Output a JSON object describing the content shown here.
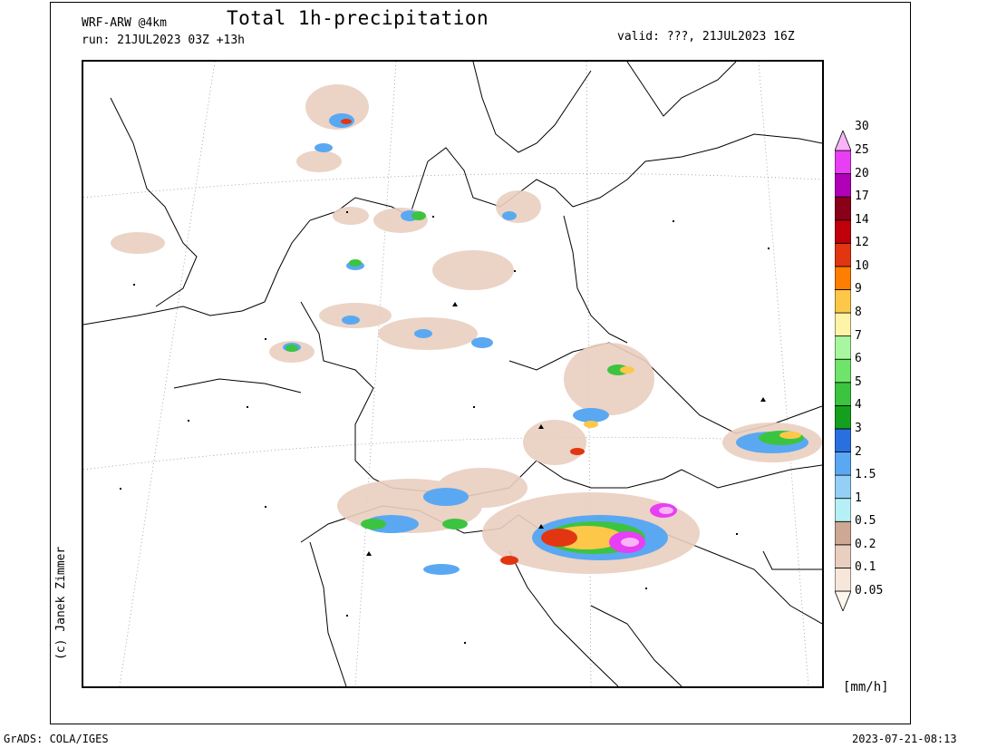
{
  "header": {
    "title": "Total 1h-precipitation",
    "model": "WRF-ARW @4km",
    "run": "run: 21JUL2023 03Z +13h",
    "valid": "valid: ???, 21JUL2023 16Z"
  },
  "credit": "(c) Janek Zimmer",
  "footer": {
    "left": "GrADS: COLA/IGES",
    "right": "2023-07-21-08:13"
  },
  "legend": {
    "units": "[mm/h]",
    "levels": [
      {
        "label": "0.05",
        "color": "#fdf6ee"
      },
      {
        "label": "0.1",
        "color": "#f7e6da"
      },
      {
        "label": "0.2",
        "color": "#e9cfc0"
      },
      {
        "label": "0.5",
        "color": "#cfa795"
      },
      {
        "label": "1",
        "color": "#b6f0f7"
      },
      {
        "label": "1.5",
        "color": "#94d0f5"
      },
      {
        "label": "2",
        "color": "#5aa8f2"
      },
      {
        "label": "3",
        "color": "#2a6fe0"
      },
      {
        "label": "4",
        "color": "#14a01c"
      },
      {
        "label": "5",
        "color": "#3cc440"
      },
      {
        "label": "6",
        "color": "#6ee46a"
      },
      {
        "label": "7",
        "color": "#a8f7a0"
      },
      {
        "label": "8",
        "color": "#fff3a8"
      },
      {
        "label": "9",
        "color": "#fdc84a"
      },
      {
        "label": "10",
        "color": "#fd7e00"
      },
      {
        "label": "12",
        "color": "#e23612"
      },
      {
        "label": "14",
        "color": "#c0000a"
      },
      {
        "label": "17",
        "color": "#8a0018"
      },
      {
        "label": "20",
        "color": "#b000b8"
      },
      {
        "label": "25",
        "color": "#e83ef4"
      },
      {
        "label": "30",
        "color": "#f8b4f6"
      }
    ]
  }
}
